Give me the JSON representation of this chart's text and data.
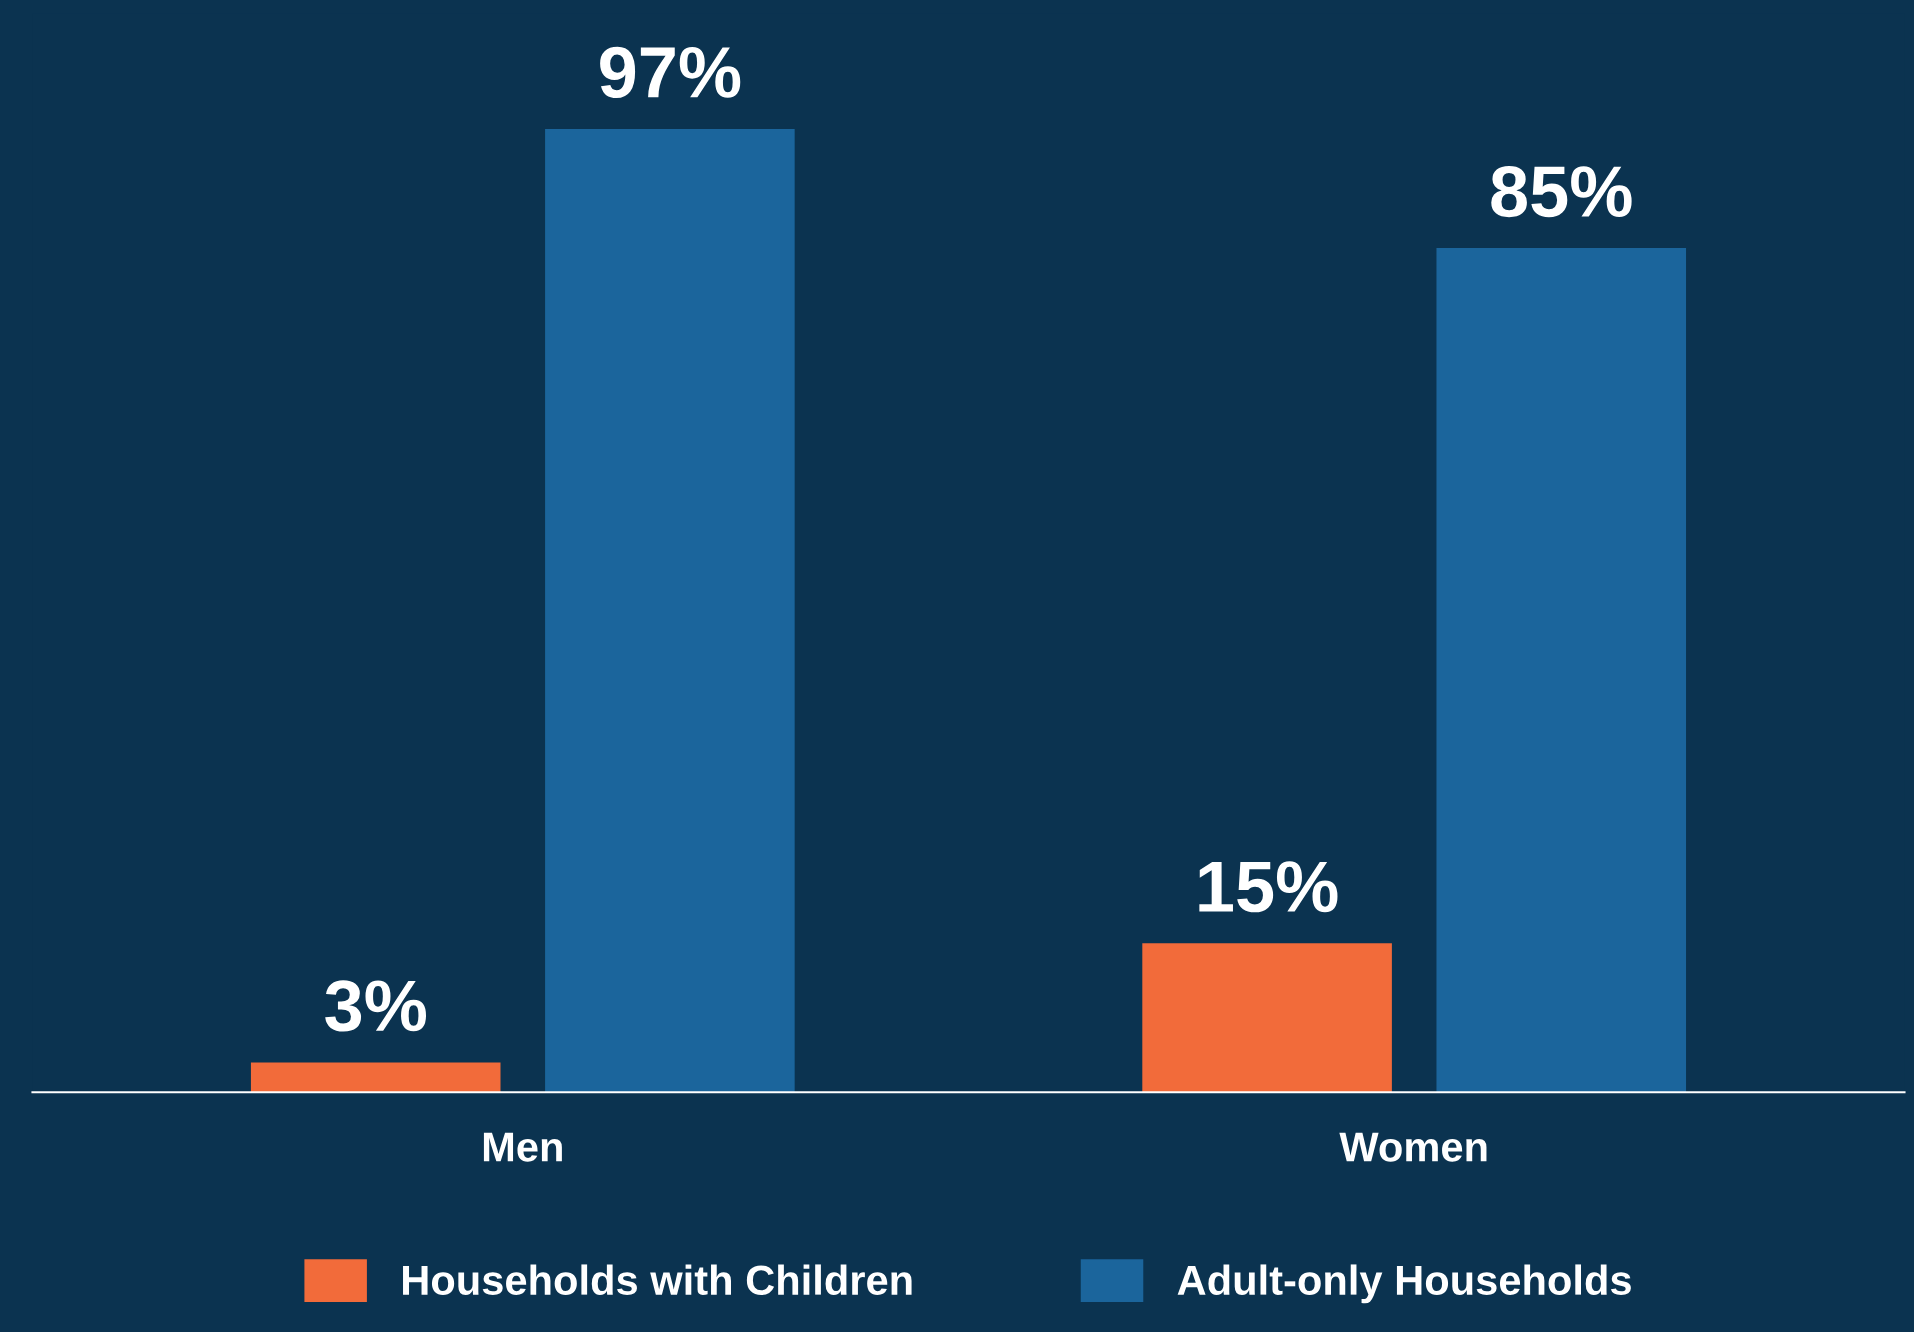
{
  "chart_data": {
    "type": "bar",
    "categories": [
      "Men",
      "Women"
    ],
    "series": [
      {
        "name": "Households with Children",
        "color": "#f26b3a",
        "values": [
          3,
          15
        ],
        "value_labels": [
          "3%",
          "15%"
        ]
      },
      {
        "name": "Adult-only Households",
        "color": "#1b659c",
        "values": [
          97,
          85
        ],
        "value_labels": [
          "97%",
          "85%"
        ]
      }
    ],
    "legend": "bottom",
    "tick_labels": "x",
    "grid": false
  }
}
